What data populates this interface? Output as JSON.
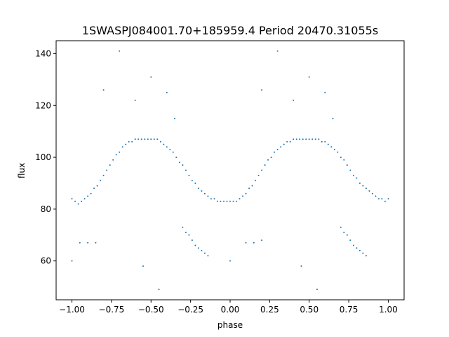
{
  "chart_data": {
    "type": "scatter",
    "title": "1SWASPJ084001.70+185959.4 Period 20470.31055s",
    "xlabel": "phase",
    "ylabel": "flux",
    "xlim": [
      -1.1,
      1.1
    ],
    "ylim": [
      45,
      145
    ],
    "x_ticks": [
      -1.0,
      -0.75,
      -0.5,
      -0.25,
      0.0,
      0.25,
      0.5,
      0.75,
      1.0
    ],
    "x_tick_labels": [
      "−1.00",
      "−0.75",
      "−0.50",
      "−0.25",
      "0.00",
      "0.25",
      "0.50",
      "0.75",
      "1.00"
    ],
    "y_ticks": [
      60,
      80,
      100,
      120,
      140
    ],
    "y_tick_labels": [
      "60",
      "80",
      "100",
      "120",
      "140"
    ],
    "grid": false,
    "legend": "none",
    "marker_color": "#1f77b4",
    "series": [
      {
        "points": [
          [
            -1.0,
            84
          ],
          [
            -0.98,
            83
          ],
          [
            -0.96,
            82
          ],
          [
            -0.94,
            83
          ],
          [
            -0.92,
            84
          ],
          [
            -0.9,
            85
          ],
          [
            -0.88,
            86
          ],
          [
            -0.86,
            88
          ],
          [
            -0.84,
            89
          ],
          [
            -0.82,
            91
          ],
          [
            -0.8,
            93
          ],
          [
            -0.78,
            95
          ],
          [
            -0.76,
            97
          ],
          [
            -0.74,
            99
          ],
          [
            -0.72,
            101
          ],
          [
            -0.7,
            102
          ],
          [
            -0.68,
            104
          ],
          [
            -0.66,
            105
          ],
          [
            -0.64,
            106
          ],
          [
            -0.62,
            106
          ],
          [
            -0.6,
            107
          ],
          [
            -0.58,
            107
          ],
          [
            -0.56,
            107
          ],
          [
            -0.54,
            107
          ],
          [
            -0.52,
            107
          ],
          [
            -0.5,
            107
          ],
          [
            -0.48,
            107
          ],
          [
            -0.46,
            107
          ],
          [
            -0.44,
            106
          ],
          [
            -0.42,
            105
          ],
          [
            -0.4,
            104
          ],
          [
            -0.38,
            103
          ],
          [
            -0.36,
            102
          ],
          [
            -0.34,
            100
          ],
          [
            -0.32,
            98
          ],
          [
            -0.3,
            97
          ],
          [
            -0.28,
            95
          ],
          [
            -0.26,
            93
          ],
          [
            -0.24,
            91
          ],
          [
            -0.22,
            90
          ],
          [
            -0.2,
            88
          ],
          [
            -0.18,
            87
          ],
          [
            -0.16,
            86
          ],
          [
            -0.14,
            85
          ],
          [
            -0.12,
            84
          ],
          [
            -0.1,
            84
          ],
          [
            -0.08,
            83
          ],
          [
            -0.06,
            83
          ],
          [
            -0.04,
            83
          ],
          [
            -0.02,
            83
          ],
          [
            0.0,
            83
          ],
          [
            0.02,
            83
          ],
          [
            0.04,
            83
          ],
          [
            0.06,
            84
          ],
          [
            0.08,
            85
          ],
          [
            0.1,
            86
          ],
          [
            0.12,
            88
          ],
          [
            0.14,
            89
          ],
          [
            0.16,
            91
          ],
          [
            0.18,
            93
          ],
          [
            0.2,
            95
          ],
          [
            0.22,
            97
          ],
          [
            0.24,
            99
          ],
          [
            0.26,
            100
          ],
          [
            0.28,
            102
          ],
          [
            0.3,
            103
          ],
          [
            0.32,
            104
          ],
          [
            0.34,
            105
          ],
          [
            0.36,
            106
          ],
          [
            0.38,
            106
          ],
          [
            0.4,
            107
          ],
          [
            0.42,
            107
          ],
          [
            0.44,
            107
          ],
          [
            0.46,
            107
          ],
          [
            0.48,
            107
          ],
          [
            0.5,
            107
          ],
          [
            0.52,
            107
          ],
          [
            0.54,
            107
          ],
          [
            0.56,
            107
          ],
          [
            0.58,
            106
          ],
          [
            0.6,
            106
          ],
          [
            0.62,
            105
          ],
          [
            0.64,
            104
          ],
          [
            0.66,
            103
          ],
          [
            0.68,
            102
          ],
          [
            0.7,
            100
          ],
          [
            0.72,
            99
          ],
          [
            0.74,
            97
          ],
          [
            0.76,
            95
          ],
          [
            0.78,
            93
          ],
          [
            0.8,
            92
          ],
          [
            0.82,
            90
          ],
          [
            0.84,
            89
          ],
          [
            0.86,
            88
          ],
          [
            0.88,
            87
          ],
          [
            0.9,
            86
          ],
          [
            0.92,
            85
          ],
          [
            0.94,
            84
          ],
          [
            0.96,
            84
          ],
          [
            0.98,
            83
          ],
          [
            1.0,
            84
          ],
          [
            -0.3,
            73
          ],
          [
            -0.28,
            71
          ],
          [
            -0.26,
            70
          ],
          [
            -0.24,
            68
          ],
          [
            -0.22,
            66
          ],
          [
            -0.2,
            65
          ],
          [
            -0.18,
            64
          ],
          [
            -0.16,
            63
          ],
          [
            -0.14,
            62
          ],
          [
            0.7,
            73
          ],
          [
            0.72,
            71
          ],
          [
            0.74,
            70
          ],
          [
            0.76,
            68
          ],
          [
            0.78,
            66
          ],
          [
            0.8,
            65
          ],
          [
            0.82,
            64
          ],
          [
            0.84,
            63
          ],
          [
            0.86,
            62
          ],
          [
            -0.95,
            67
          ],
          [
            -0.9,
            67
          ],
          [
            -0.85,
            67
          ],
          [
            0.1,
            67
          ],
          [
            0.15,
            67
          ],
          [
            0.2,
            68
          ],
          [
            -0.7,
            141
          ],
          [
            0.3,
            141
          ],
          [
            -0.5,
            131
          ],
          [
            0.5,
            131
          ],
          [
            -0.4,
            125
          ],
          [
            0.6,
            125
          ],
          [
            -0.6,
            122
          ],
          [
            0.4,
            122
          ],
          [
            -0.35,
            115
          ],
          [
            0.65,
            115
          ],
          [
            -0.55,
            58
          ],
          [
            0.45,
            58
          ],
          [
            -0.45,
            49
          ],
          [
            0.55,
            49
          ],
          [
            -1.0,
            60
          ],
          [
            0.0,
            60
          ],
          [
            -0.8,
            126
          ],
          [
            0.2,
            126
          ]
        ]
      }
    ]
  }
}
